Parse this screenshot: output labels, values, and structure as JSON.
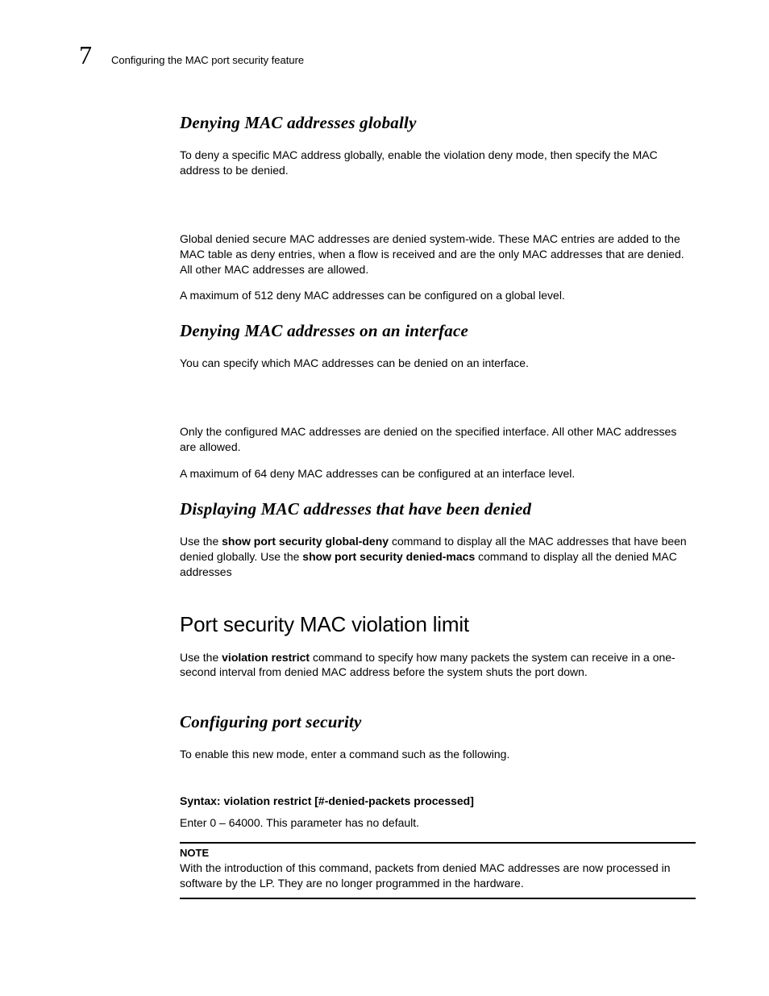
{
  "header": {
    "chapter_number": "7",
    "running_title": "Configuring the MAC port security feature"
  },
  "sections": {
    "s1": {
      "heading": "Denying MAC addresses globally",
      "p1": "To deny a specific MAC address globally, enable the violation deny mode, then specify the MAC address to be denied.",
      "p2": "Global denied secure MAC addresses are denied system-wide. These MAC entries are added to the MAC table as deny entries, when a flow is received and are the only MAC addresses that are denied. All other MAC addresses are allowed.",
      "p3": "A maximum of 512 deny MAC addresses can be configured on a global level."
    },
    "s2": {
      "heading": "Denying MAC addresses on an interface",
      "p1": "You can specify which MAC addresses can be denied on an interface.",
      "p2": "Only the configured MAC addresses are denied on the specified interface. All other MAC addresses are allowed.",
      "p3": "A maximum of 64 deny MAC addresses can be configured at an interface level."
    },
    "s3": {
      "heading": "Displaying MAC addresses that have been denied",
      "p1_pre": "Use the ",
      "p1_b1": "show port security global-deny",
      "p1_mid": " command to display all the MAC addresses that have been denied globally. Use the ",
      "p1_b2": "show port security denied-macs",
      "p1_post": " command to display all the denied MAC addresses"
    },
    "s4": {
      "heading": "Port security MAC violation limit",
      "p1_pre": "Use the ",
      "p1_b1": "violation restrict",
      "p1_post": " command to specify how many packets the system can receive in a one-second interval from denied MAC address before the system shuts the port down."
    },
    "s5": {
      "heading": "Configuring port security",
      "p1": "To enable this new mode, enter a command such as the following.",
      "syntax": "Syntax:  violation restrict [#-denied-packets processed]",
      "p2": " Enter 0 – 64000. This parameter has no default.",
      "note_label": "NOTE",
      "note_body": "With the introduction of this command, packets from denied MAC addresses are now processed in software by the LP. They are no longer programmed in the hardware."
    }
  },
  "style": {
    "page_bg": "#ffffff",
    "text_color": "#000000",
    "heading_italic_fontsize": 21,
    "heading_section_fontsize": 26,
    "body_fontsize": 14,
    "chapter_num_fontsize": 32
  }
}
